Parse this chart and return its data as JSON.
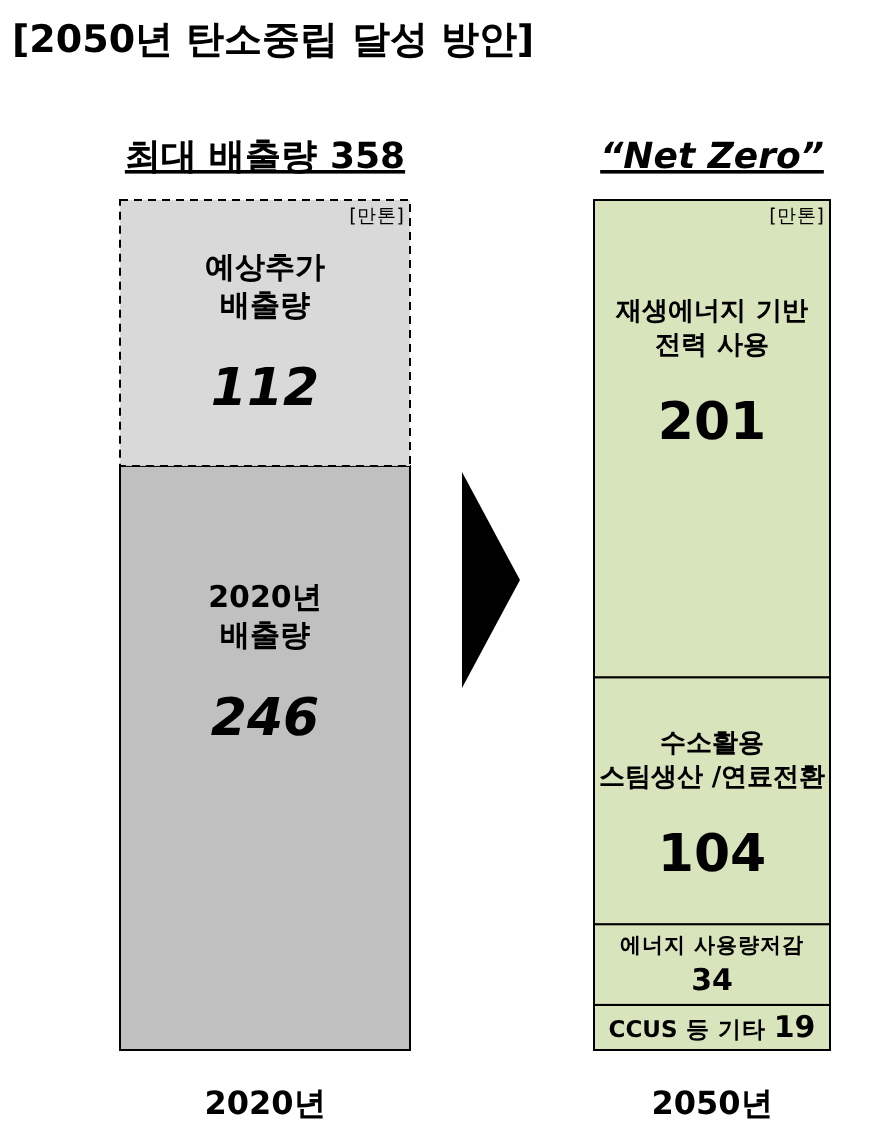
{
  "chart_data": {
    "type": "bar",
    "title": "[2050년 탄소중립 달성 방안]",
    "stacked": true,
    "data_labels": true,
    "categories": [
      "2020년",
      "2050년"
    ],
    "annotations": [
      "최대 배출량 358",
      "“Net Zero”",
      "[만톤]",
      "[만톤]"
    ],
    "series": [
      {
        "name": "2020년\n배출량",
        "color": "#c0c0c0",
        "values": [
          246,
          null
        ]
      },
      {
        "name": "예상추가\n배출량",
        "color": "#d9d9d9",
        "values": [
          112,
          null
        ],
        "line_style": "dashed"
      },
      {
        "name": "CCUS 등 기타",
        "color": "#d8e4bc",
        "values": [
          null,
          19
        ]
      },
      {
        "name": "에너지 사용량저감",
        "color": "#d8e4bc",
        "values": [
          null,
          34
        ]
      },
      {
        "name": "수소활용\n스팀생산 /연료전환",
        "color": "#d8e4bc",
        "values": [
          null,
          104
        ]
      },
      {
        "name": "재생에너지 기반\n전력 사용",
        "color": "#d8e4bc",
        "values": [
          null,
          201
        ]
      }
    ]
  }
}
